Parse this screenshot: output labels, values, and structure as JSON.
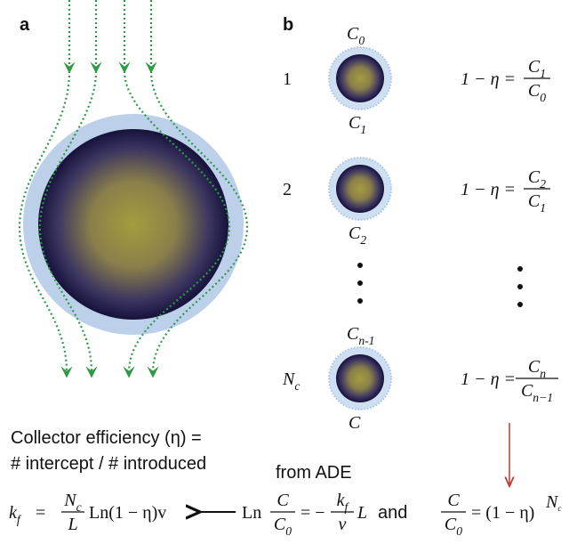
{
  "panel_a": {
    "label": "a",
    "caption": [
      "Collector efficiency (η) =",
      "# intercept / # introduced"
    ]
  },
  "panel_b": {
    "label": "b",
    "rows": [
      {
        "index": "1",
        "top": {
          "t": "C",
          "s": "0"
        },
        "bottom": {
          "t": "C",
          "s": "1"
        },
        "lhs": "1 − η =",
        "num": {
          "t": "C",
          "s": "1"
        },
        "den": {
          "t": "C",
          "s": "0"
        }
      },
      {
        "index": "2",
        "bottom": {
          "t": "C",
          "s": "2"
        },
        "lhs": "1 − η =",
        "num": {
          "t": "C",
          "s": "2"
        },
        "den": {
          "t": "C",
          "s": "1"
        }
      },
      {
        "index": {
          "t": "N",
          "s": "c"
        },
        "top": {
          "t": "C",
          "s": "n-1"
        },
        "bottom": "C",
        "lhs": "1 − η =",
        "num": {
          "t": "C",
          "s": "n"
        },
        "den": {
          "t": "C",
          "s": "n−1"
        }
      }
    ]
  },
  "from_ade": "from ADE",
  "bottom": {
    "kf": {
      "t": "k",
      "s": "f"
    },
    "eq1": "=",
    "f1num": {
      "t": "N",
      "s": "c"
    },
    "f1den": "L",
    "tail1": "Ln(1 − η)v",
    "ln": "Ln",
    "f2num": "C",
    "f2den": {
      "t": "C",
      "s": "0"
    },
    "eq2": "= −",
    "f3num": {
      "t": "k",
      "s": "f"
    },
    "f3den": "v",
    "tail2": "L",
    "and": "and",
    "f4num": "C",
    "f4den": {
      "t": "C",
      "s": "0"
    },
    "tail3": "= (1 − η)",
    "exp": {
      "t": "N",
      "s": "c"
    }
  }
}
